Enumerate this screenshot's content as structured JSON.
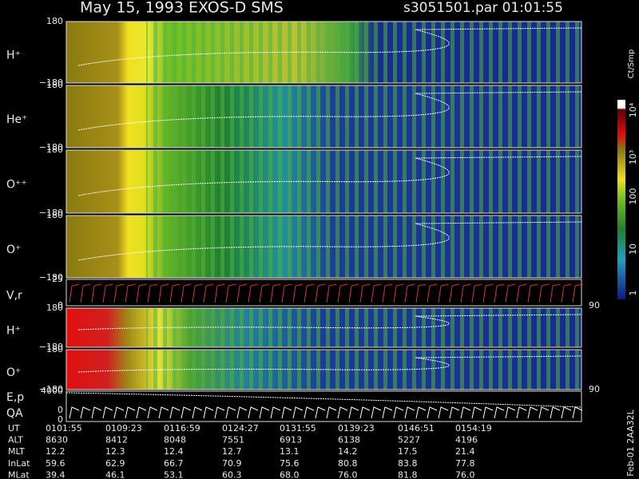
{
  "header": {
    "title": "May 15, 1993   EXOS-D SMS",
    "file": "s3051501.par  01:01:55"
  },
  "panels": [
    {
      "label": "H⁺",
      "ticks": [
        "180",
        "−180"
      ]
    },
    {
      "label": "He⁺",
      "ticks": [
        "180",
        "−180"
      ]
    },
    {
      "label": "O⁺⁺",
      "ticks": [
        "180",
        "−180"
      ]
    },
    {
      "label": "O⁺",
      "ticks": [
        "180",
        "−180"
      ]
    },
    {
      "label": "V,r",
      "ticks": [
        "25",
        "0"
      ],
      "right": "90"
    },
    {
      "label": "H⁺",
      "ticks": [
        "180",
        "−180"
      ]
    },
    {
      "label": "O⁺",
      "ticks": [
        "180",
        "−180"
      ],
      "right": "90"
    },
    {
      "label": "E,p",
      "label2": "QA",
      "ticks": [
        "4000",
        "0",
        "0"
      ]
    }
  ],
  "colorbar": {
    "unit": "Ct/Smp",
    "labels": [
      "1",
      "10",
      "100",
      "10³",
      "10⁴"
    ]
  },
  "table": {
    "rows": [
      [
        "UT",
        "0101:55",
        "0109:23",
        "0116:59",
        "0124:27",
        "0131:55",
        "0139:23",
        "0146:51",
        "0154:19"
      ],
      [
        "ALT",
        "8630",
        "8412",
        "8048",
        "7551",
        "6913",
        "6138",
        "5227",
        "4196"
      ],
      [
        "MLT",
        "12.2",
        "12.3",
        "12.4",
        "12.7",
        "13.1",
        "14.2",
        "17.5",
        "21.4"
      ],
      [
        "InLat",
        "59.6",
        "62.9",
        "66.7",
        "70.9",
        "75.6",
        "80.8",
        "83.8",
        "77.8"
      ],
      [
        "MLat",
        "39.4",
        "46.1",
        "53.1",
        "60.3",
        "68.0",
        "76.0",
        "81.8",
        "76.0"
      ]
    ]
  },
  "footer": "Feb-01 2AA32L"
}
